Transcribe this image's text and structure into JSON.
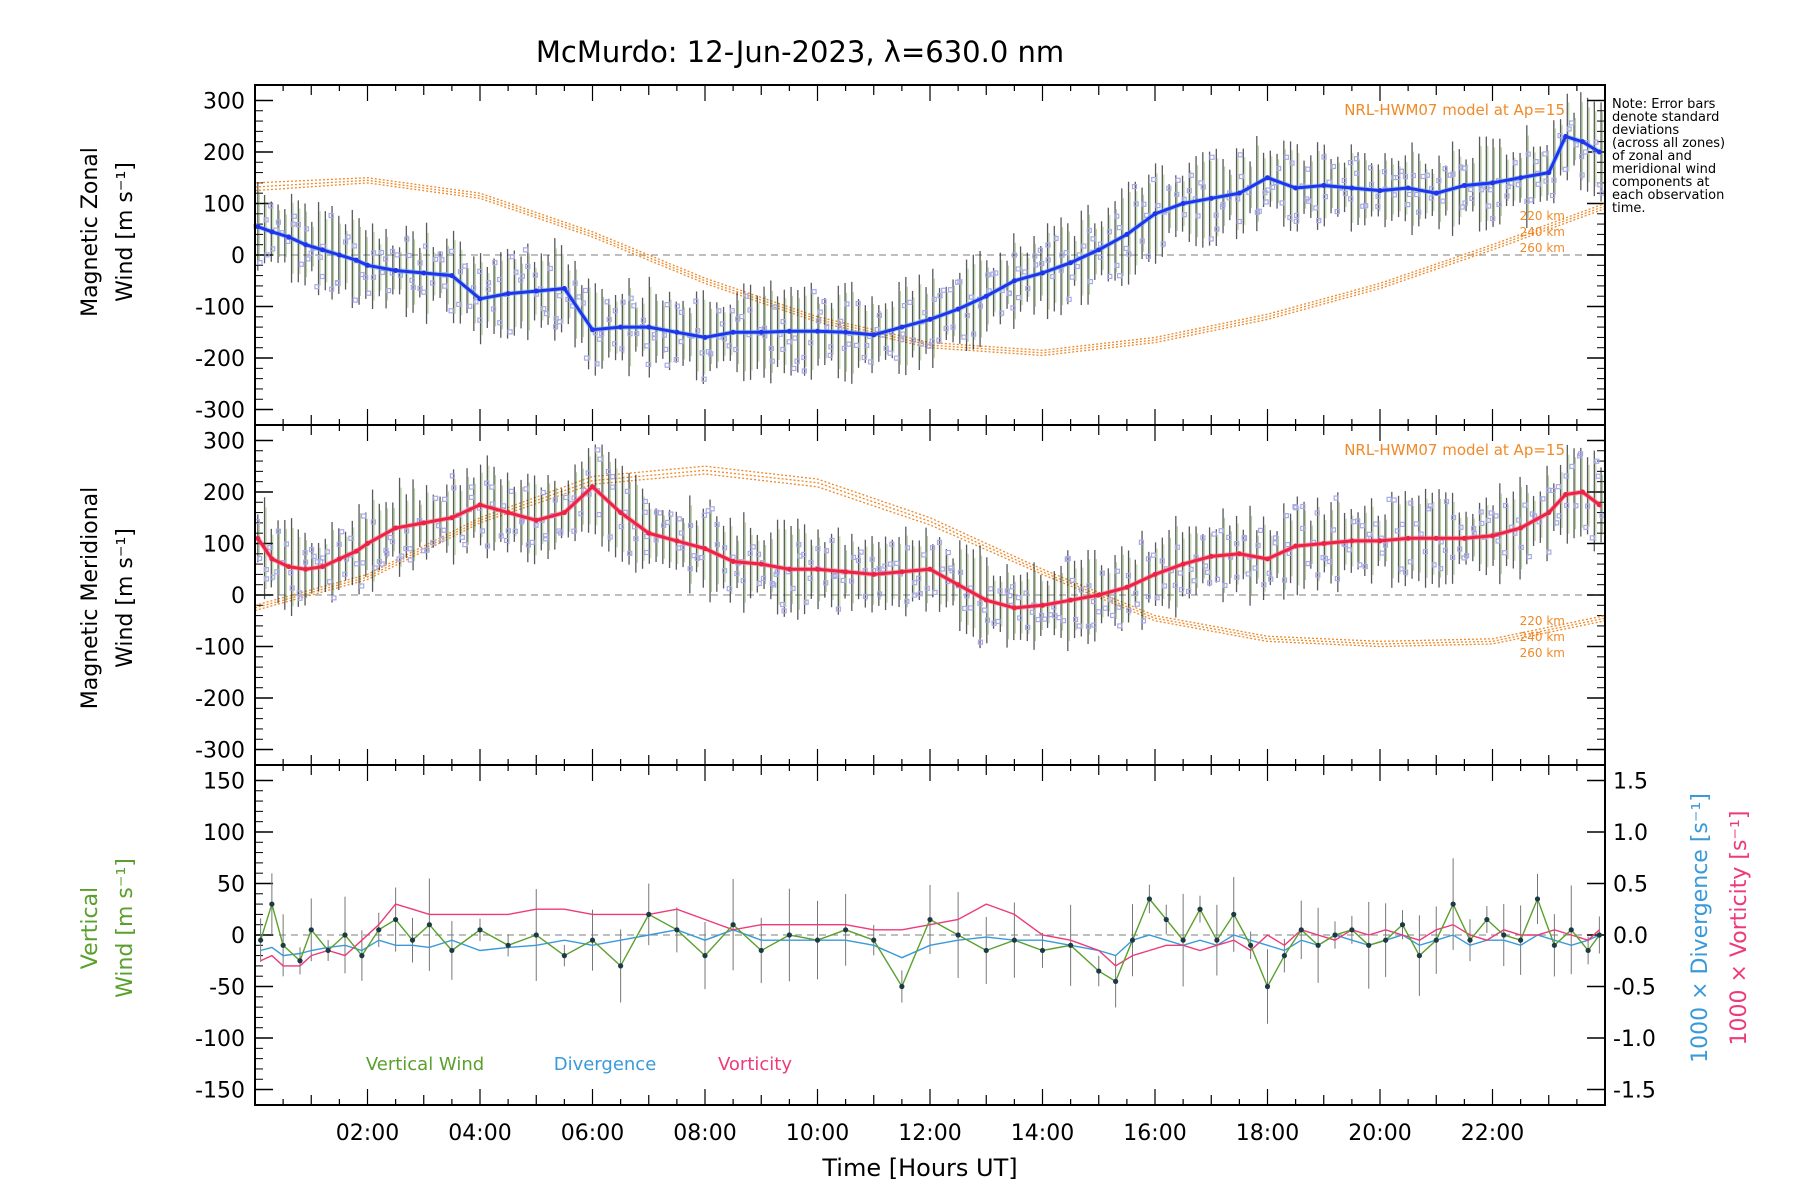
{
  "title": "McMurdo: 12-Jun-2023, λ=630.0 nm",
  "note_lines": [
    "Note: Error bars",
    "denote standard",
    "deviations",
    "(across all zones)",
    "of zonal and",
    "meridional wind",
    "components at",
    "each observation",
    "time."
  ],
  "colors": {
    "zonal": "#2233ee",
    "zonal_light": "#55aaee",
    "meridional": "#ee2244",
    "meridional_light": "#ff6688",
    "model": "#f08a28",
    "vertical": "#5aa02c",
    "divergence": "#3a9ad9",
    "vorticity": "#ee3a7a",
    "zone_dots": "#a9a9e8",
    "errbar": "#222222",
    "zero_line": "#999999"
  },
  "chart_data": [
    {
      "type": "line",
      "name": "zonal",
      "ylabel_line1": "Magnetic Zonal",
      "ylabel_line2": "Wind [m s⁻¹]",
      "ylim": [
        -330,
        330
      ],
      "yticks": [
        -300,
        -200,
        -100,
        0,
        100,
        200,
        300
      ],
      "model_label": "NRL-HWM07 model at Ap=15",
      "model_heights": [
        "220 km",
        "240 km",
        "260 km"
      ],
      "x": [
        0.05,
        0.3,
        0.6,
        0.9,
        1.2,
        1.5,
        1.8,
        2.0,
        2.5,
        3.0,
        3.5,
        4.0,
        4.5,
        5.0,
        5.5,
        6.0,
        6.5,
        7.0,
        7.5,
        8.0,
        8.5,
        9.0,
        9.5,
        10.0,
        10.5,
        11.0,
        11.5,
        12.0,
        12.5,
        13.0,
        13.5,
        14.0,
        14.5,
        15.0,
        15.5,
        16.0,
        16.5,
        17.0,
        17.5,
        18.0,
        18.5,
        19.0,
        19.5,
        20.0,
        20.5,
        21.0,
        21.5,
        22.0,
        22.5,
        23.0,
        23.3,
        23.6,
        23.9
      ],
      "values": [
        55,
        45,
        35,
        20,
        10,
        0,
        -10,
        -20,
        -30,
        -35,
        -40,
        -85,
        -75,
        -70,
        -65,
        -145,
        -140,
        -140,
        -150,
        -160,
        -150,
        -150,
        -148,
        -148,
        -150,
        -155,
        -140,
        -125,
        -105,
        -80,
        -50,
        -35,
        -15,
        10,
        40,
        80,
        100,
        110,
        120,
        150,
        130,
        135,
        130,
        125,
        130,
        120,
        135,
        140,
        150,
        160,
        230,
        220,
        200
      ],
      "model_series": [
        {
          "name": "220 km",
          "x": [
            0,
            2,
            4,
            6,
            8,
            10,
            12,
            14,
            16,
            18,
            20,
            22,
            24
          ],
          "values": [
            140,
            150,
            120,
            45,
            -45,
            -120,
            -170,
            -185,
            -160,
            -115,
            -55,
            20,
            100
          ]
        },
        {
          "name": "240 km",
          "x": [
            0,
            2,
            4,
            6,
            8,
            10,
            12,
            14,
            16,
            18,
            20,
            22,
            24
          ],
          "values": [
            132,
            145,
            115,
            40,
            -50,
            -125,
            -175,
            -190,
            -165,
            -120,
            -60,
            15,
            95
          ]
        },
        {
          "name": "260 km",
          "x": [
            0,
            2,
            4,
            6,
            8,
            10,
            12,
            14,
            16,
            18,
            20,
            22,
            24
          ],
          "values": [
            125,
            140,
            110,
            35,
            -55,
            -130,
            -180,
            -195,
            -170,
            -125,
            -65,
            10,
            90
          ]
        }
      ]
    },
    {
      "type": "line",
      "name": "meridional",
      "ylabel_line1": "Magnetic Meridional",
      "ylabel_line2": "Wind [m s⁻¹]",
      "ylim": [
        -330,
        330
      ],
      "yticks": [
        -300,
        -200,
        -100,
        0,
        100,
        200,
        300
      ],
      "model_label": "NRL-HWM07 model at Ap=15",
      "model_heights": [
        "220 km",
        "240 km",
        "260 km"
      ],
      "x": [
        0.05,
        0.3,
        0.6,
        0.9,
        1.2,
        1.5,
        1.8,
        2.0,
        2.5,
        3.0,
        3.5,
        4.0,
        4.5,
        5.0,
        5.5,
        6.0,
        6.5,
        7.0,
        7.5,
        8.0,
        8.5,
        9.0,
        9.5,
        10.0,
        10.5,
        11.0,
        11.5,
        12.0,
        12.5,
        13.0,
        13.5,
        14.0,
        14.5,
        15.0,
        15.5,
        16.0,
        16.5,
        17.0,
        17.5,
        18.0,
        18.5,
        19.0,
        19.5,
        20.0,
        20.5,
        21.0,
        21.5,
        22.0,
        22.5,
        23.0,
        23.3,
        23.6,
        23.9
      ],
      "values": [
        110,
        70,
        55,
        50,
        55,
        70,
        85,
        100,
        130,
        140,
        150,
        175,
        160,
        145,
        160,
        210,
        160,
        120,
        105,
        90,
        65,
        60,
        50,
        50,
        45,
        40,
        45,
        50,
        20,
        -10,
        -25,
        -20,
        -10,
        0,
        15,
        40,
        60,
        75,
        80,
        70,
        95,
        100,
        105,
        105,
        110,
        110,
        110,
        115,
        130,
        160,
        195,
        200,
        175
      ],
      "model_series": [
        {
          "name": "220 km",
          "x": [
            0,
            2,
            4,
            6,
            8,
            10,
            12,
            14,
            16,
            18,
            20,
            22,
            24
          ],
          "values": [
            -20,
            40,
            150,
            230,
            250,
            225,
            150,
            50,
            -40,
            -80,
            -90,
            -85,
            -40
          ]
        },
        {
          "name": "240 km",
          "x": [
            0,
            2,
            4,
            6,
            8,
            10,
            12,
            14,
            16,
            18,
            20,
            22,
            24
          ],
          "values": [
            -25,
            35,
            145,
            222,
            242,
            218,
            143,
            45,
            -45,
            -85,
            -95,
            -90,
            -45
          ]
        },
        {
          "name": "260 km",
          "x": [
            0,
            2,
            4,
            6,
            8,
            10,
            12,
            14,
            16,
            18,
            20,
            22,
            24
          ],
          "values": [
            -30,
            30,
            140,
            215,
            235,
            210,
            136,
            40,
            -50,
            -90,
            -100,
            -95,
            -50
          ]
        }
      ]
    },
    {
      "type": "line",
      "name": "vertical",
      "ylabel_line1": "Vertical",
      "ylabel_line2": "Wind [m s⁻¹]",
      "ylim": [
        -165,
        165
      ],
      "yticks": [
        -150,
        -100,
        -50,
        0,
        50,
        100,
        150
      ],
      "y2label_line1": "1000 × Divergence [s⁻¹]",
      "y2label_line2": "1000 × Vorticity [s⁻¹]",
      "y2lim": [
        -1.65,
        1.65
      ],
      "y2ticks": [
        -1.5,
        -1.0,
        -0.5,
        0.0,
        0.5,
        1.0,
        1.5
      ],
      "legend": [
        "Vertical Wind",
        "Divergence",
        "Vorticity"
      ],
      "x": [
        0.1,
        0.3,
        0.5,
        0.8,
        1.0,
        1.3,
        1.6,
        1.9,
        2.2,
        2.5,
        2.8,
        3.1,
        3.5,
        4.0,
        4.5,
        5.0,
        5.5,
        6.0,
        6.5,
        7.0,
        7.5,
        8.0,
        8.5,
        9.0,
        9.5,
        10.0,
        10.5,
        11.0,
        11.5,
        12.0,
        12.5,
        13.0,
        13.5,
        14.0,
        14.5,
        15.0,
        15.3,
        15.6,
        15.9,
        16.2,
        16.5,
        16.8,
        17.1,
        17.4,
        17.7,
        18.0,
        18.3,
        18.6,
        18.9,
        19.2,
        19.5,
        19.8,
        20.1,
        20.4,
        20.7,
        21.0,
        21.3,
        21.6,
        21.9,
        22.2,
        22.5,
        22.8,
        23.1,
        23.4,
        23.7,
        23.9
      ],
      "values": [
        -5,
        30,
        -10,
        -25,
        5,
        -15,
        0,
        -20,
        5,
        15,
        -5,
        10,
        -15,
        5,
        -10,
        0,
        -20,
        -5,
        -30,
        20,
        5,
        -20,
        10,
        -15,
        0,
        -5,
        5,
        -5,
        -50,
        15,
        0,
        -15,
        -5,
        -15,
        -10,
        -35,
        -45,
        -5,
        35,
        15,
        -5,
        25,
        -5,
        20,
        -10,
        -50,
        -20,
        5,
        -10,
        0,
        5,
        -10,
        -5,
        10,
        -20,
        -5,
        30,
        -5,
        15,
        0,
        -5,
        35,
        -10,
        5,
        -15,
        0
      ],
      "divergence": [
        -0.15,
        -0.12,
        -0.2,
        -0.18,
        -0.15,
        -0.12,
        -0.1,
        -0.15,
        -0.05,
        -0.1,
        -0.1,
        -0.12,
        -0.05,
        -0.15,
        -0.12,
        -0.1,
        -0.05,
        -0.1,
        -0.05,
        0.0,
        0.05,
        -0.05,
        0.05,
        -0.05,
        -0.05,
        -0.05,
        -0.05,
        -0.1,
        -0.22,
        -0.1,
        -0.05,
        -0.02,
        -0.05,
        -0.05,
        -0.1,
        -0.15,
        -0.2,
        -0.05,
        0.0,
        -0.05,
        -0.1,
        -0.05,
        -0.1,
        0.0,
        -0.05,
        -0.1,
        -0.15,
        -0.05,
        -0.1,
        0.0,
        -0.05,
        -0.1,
        -0.05,
        0.0,
        -0.1,
        -0.05,
        0.0,
        -0.1,
        -0.05,
        -0.05,
        -0.1,
        0.0,
        -0.05,
        -0.1,
        -0.05,
        0.0
      ],
      "vorticity": [
        -0.25,
        -0.2,
        -0.3,
        -0.3,
        -0.2,
        -0.15,
        -0.2,
        -0.05,
        0.1,
        0.3,
        0.25,
        0.2,
        0.2,
        0.2,
        0.2,
        0.25,
        0.25,
        0.2,
        0.2,
        0.2,
        0.25,
        0.15,
        0.05,
        0.1,
        0.1,
        0.1,
        0.1,
        0.05,
        0.05,
        0.1,
        0.15,
        0.3,
        0.2,
        0.0,
        -0.05,
        -0.15,
        -0.3,
        -0.2,
        -0.15,
        -0.1,
        -0.1,
        -0.15,
        -0.1,
        -0.05,
        -0.15,
        0.0,
        -0.1,
        0.05,
        0.0,
        -0.05,
        0.05,
        0.0,
        0.05,
        0.0,
        -0.05,
        0.05,
        0.1,
        0.0,
        -0.05,
        0.05,
        0.0,
        0.0,
        0.05,
        0.0,
        -0.05,
        0.05
      ]
    }
  ],
  "xaxis": {
    "label": "Time [Hours UT]",
    "xlim": [
      0,
      24
    ],
    "tick_labels": [
      "02:00",
      "04:00",
      "06:00",
      "08:00",
      "10:00",
      "12:00",
      "14:00",
      "16:00",
      "18:00",
      "20:00",
      "22:00"
    ],
    "tick_values": [
      2,
      4,
      6,
      8,
      10,
      12,
      14,
      16,
      18,
      20,
      22
    ]
  }
}
